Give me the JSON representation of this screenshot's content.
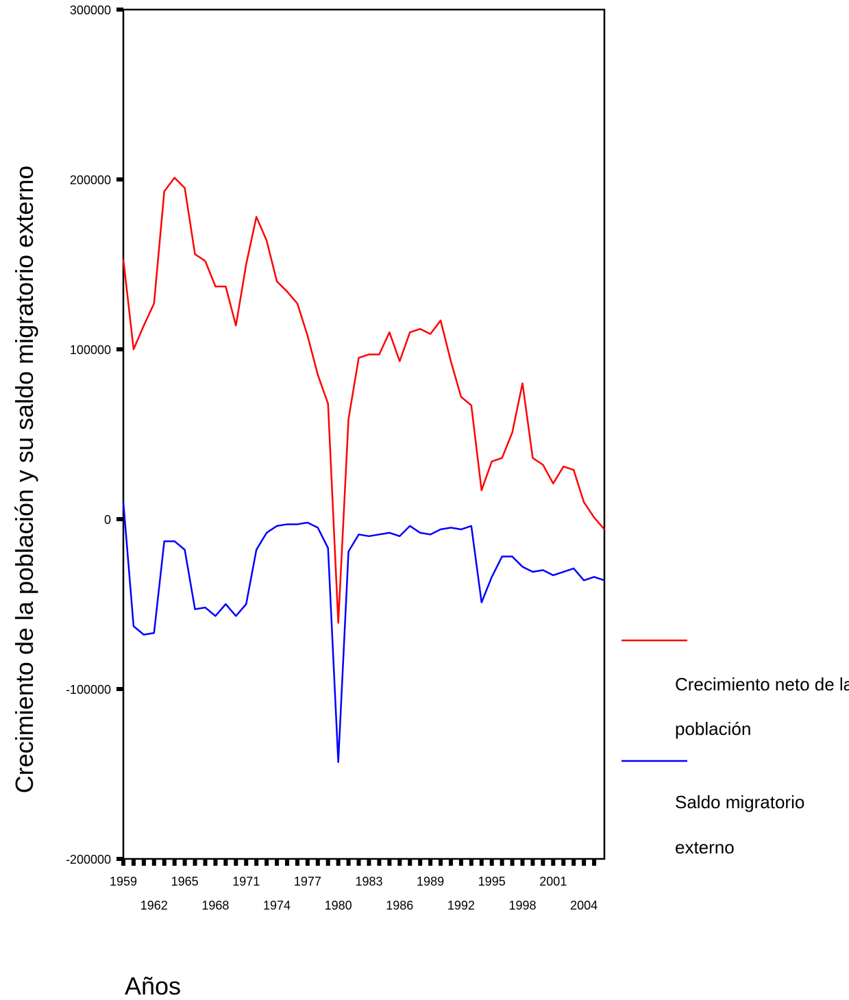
{
  "chart_data": {
    "type": "line",
    "title": "",
    "xlabel": "Años",
    "ylabel": "Crecimiento de la población y su saldo migratorio externo",
    "ylim": [
      -200000,
      300000
    ],
    "yticks": [
      -200000,
      -100000,
      0,
      100000,
      200000,
      300000
    ],
    "ytick_labels": [
      "-200000",
      "-100000",
      "0",
      "100000",
      "200000",
      "300000"
    ],
    "xlim": [
      1959,
      2006
    ],
    "xtick_labels_upper": [
      "1959",
      "1965",
      "1971",
      "1977",
      "1983",
      "1989",
      "1995",
      "2001"
    ],
    "xtick_labels_lower": [
      "1962",
      "1968",
      "1974",
      "1980",
      "1986",
      "1992",
      "1998",
      "2004"
    ],
    "grid": false,
    "legend_position": "right",
    "x": [
      1959,
      1960,
      1961,
      1962,
      1963,
      1964,
      1965,
      1966,
      1967,
      1968,
      1969,
      1970,
      1971,
      1972,
      1973,
      1974,
      1975,
      1976,
      1977,
      1978,
      1979,
      1980,
      1981,
      1982,
      1983,
      1984,
      1985,
      1986,
      1987,
      1988,
      1989,
      1990,
      1991,
      1992,
      1993,
      1994,
      1995,
      1996,
      1997,
      1998,
      1999,
      2000,
      2001,
      2002,
      2003,
      2004,
      2005,
      2006
    ],
    "series": [
      {
        "name": "Crecimiento neto de la población",
        "color": "#ff0000",
        "values": [
          153000,
          100000,
          114000,
          127000,
          193000,
          201000,
          195000,
          156000,
          152000,
          137000,
          137000,
          114000,
          150000,
          178000,
          164000,
          140000,
          134000,
          127000,
          108000,
          85000,
          68000,
          -61000,
          59000,
          95000,
          97000,
          97000,
          110000,
          93000,
          110000,
          112000,
          109000,
          117000,
          93000,
          72000,
          67000,
          17000,
          34000,
          36000,
          51000,
          80000,
          36000,
          32000,
          21000,
          31000,
          29000,
          10000,
          1000,
          -6000
        ]
      },
      {
        "name": "Saldo migratorio externo",
        "color": "#0000ff",
        "values": [
          10000,
          -63000,
          -68000,
          -67000,
          -13000,
          -13000,
          -18000,
          -53000,
          -52000,
          -57000,
          -50000,
          -57000,
          -50000,
          -18000,
          -8000,
          -4000,
          -3000,
          -3000,
          -2000,
          -5000,
          -17000,
          -143000,
          -19000,
          -9000,
          -10000,
          -9000,
          -8000,
          -10000,
          -4000,
          -8000,
          -9000,
          -6000,
          -5000,
          -6000,
          -4000,
          -49000,
          -34000,
          -22000,
          -22000,
          -28000,
          -31000,
          -30000,
          -33000,
          -31000,
          -29000,
          -36000,
          -34000,
          -36000
        ]
      }
    ]
  }
}
